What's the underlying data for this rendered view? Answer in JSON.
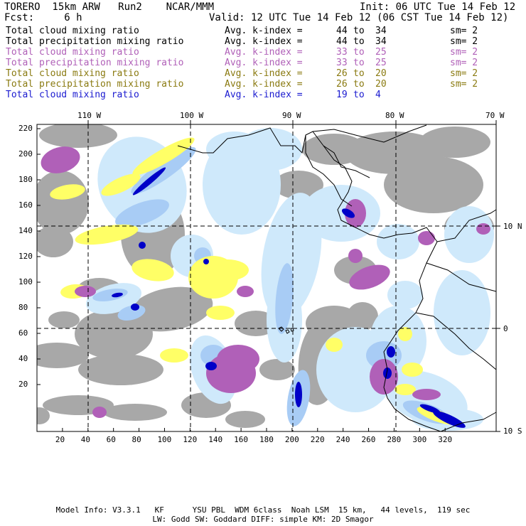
{
  "header": {
    "title": "TORERO  15km ARW   Run2    NCAR/MMM",
    "init": "Init: 06 UTC Tue 14 Feb 12",
    "fcst": "Fcst:     6 h",
    "valid": "Valid: 12 UTC Tue 14 Feb 12 (06 CST Tue 14 Feb 12)"
  },
  "legend": [
    {
      "field": "Total cloud mixing ratio",
      "index": "Avg. k-index =",
      "from": "44",
      "to_word": "to",
      "to": "34",
      "sm": "sm= 2",
      "color": "#000000"
    },
    {
      "field": "Total precipitation mixing ratio",
      "index": "Avg. k-index =",
      "from": "44",
      "to_word": "to",
      "to": "34",
      "sm": "sm= 2",
      "color": "#000000"
    },
    {
      "field": "Total cloud mixing ratio",
      "index": "Avg. k-index =",
      "from": "33",
      "to_word": "to",
      "to": "25",
      "sm": "sm= 2",
      "color": "#b060b8"
    },
    {
      "field": "Total precipitation mixing ratio",
      "index": "Avg. k-index =",
      "from": "33",
      "to_word": "to",
      "to": "25",
      "sm": "sm= 2",
      "color": "#b060b8"
    },
    {
      "field": "Total cloud mixing ratio",
      "index": "Avg. k-index =",
      "from": "26",
      "to_word": "to",
      "to": "20",
      "sm": "sm= 2",
      "color": "#8a7a10"
    },
    {
      "field": "Total precipitation mixing ratio",
      "index": "Avg. k-index =",
      "from": "26",
      "to_word": "to",
      "to": "20",
      "sm": "sm= 2",
      "color": "#8a7a10"
    },
    {
      "field": "Total cloud mixing ratio",
      "index": "Avg. k-index =",
      "from": "19",
      "to_word": "to",
      "to": "4",
      "sm": "",
      "color": "#1a1ad0"
    }
  ],
  "map": {
    "top_lon_labels": [
      "110 W",
      "100 W",
      "90 W",
      "80 W",
      "70 W"
    ],
    "right_lat_labels": [
      "10 N",
      "0",
      "10 S"
    ],
    "bottom_ticks": [
      "20",
      "40",
      "60",
      "80",
      "100",
      "120",
      "140",
      "160",
      "180",
      "200",
      "220",
      "240",
      "260",
      "280",
      "300",
      "320"
    ],
    "left_ticks": [
      "220",
      "200",
      "180",
      "160",
      "140",
      "120",
      "100",
      "80",
      "60",
      "40",
      "20"
    ],
    "colors": {
      "gray": "#a8a8a8",
      "purple": "#b060b8",
      "yellow": "#ffff66",
      "light_blue": "#cfe9fb",
      "mid_blue": "#a8ccf5",
      "dark_blue": "#0000c8",
      "coast": "#000000"
    }
  },
  "footer": {
    "line1": "Model Info: V3.3.1   KF      YSU PBL  WDM 6class  Noah LSM  15 km,   44 levels,  119 sec",
    "line2": "LW: Godd SW: Goddard DIFF: simple KM: 2D Smagor"
  }
}
